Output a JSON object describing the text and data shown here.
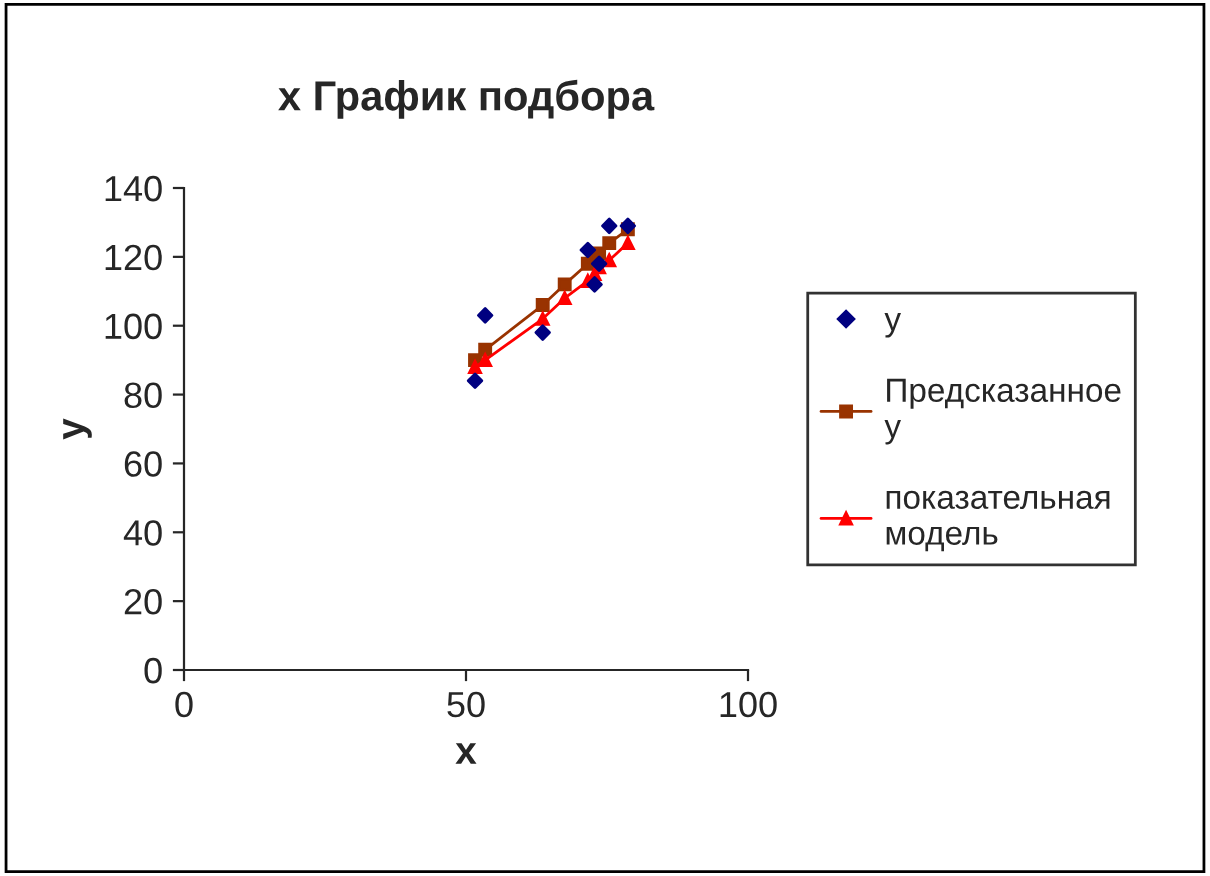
{
  "chart_data": {
    "type": "scatter",
    "title": "x График подбора",
    "xlabel": "x",
    "ylabel": "y",
    "x": [
      51.6,
      53.4,
      63.6,
      67.5,
      71.6,
      72.8,
      73.6,
      75.4,
      78.7
    ],
    "series": [
      {
        "name": "y",
        "color": "#000080",
        "marker": "diamond",
        "values": [
          84,
          103,
          98,
          null,
          122,
          112,
          118,
          129,
          129
        ]
      },
      {
        "name": "Предсказанное y",
        "color": "#993300",
        "type": "line",
        "marker": "square",
        "values": [
          90,
          93,
          106,
          112,
          118,
          120,
          121,
          124,
          128
        ]
      },
      {
        "name": "показательная модель",
        "color": "#ff0000",
        "type": "line",
        "marker": "triangle",
        "values": [
          88,
          90,
          102,
          108,
          113,
          115,
          117,
          119,
          124
        ]
      }
    ],
    "xlim": [
      0,
      100
    ],
    "xticks": [
      0,
      50,
      100
    ],
    "ylim": [
      0,
      140
    ],
    "yticks": [
      0,
      20,
      40,
      60,
      80,
      100,
      120,
      140
    ],
    "grid": false,
    "legend": "right"
  }
}
